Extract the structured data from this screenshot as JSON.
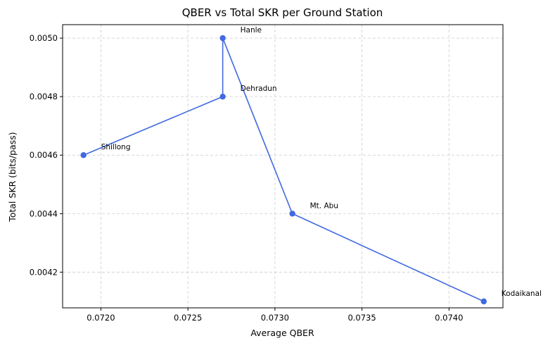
{
  "chart_data": {
    "type": "line",
    "title": "QBER vs Total SKR per Ground Station",
    "xlabel": "Average QBER",
    "ylabel": "Total SKR (bits/pass)",
    "xlim": [
      0.07178,
      0.07431
    ],
    "ylim": [
      0.004078,
      0.005046
    ],
    "grid": true,
    "grid_style": "dashed",
    "xticks": [
      "0.0720",
      "0.0725",
      "0.0730",
      "0.0735",
      "0.0740"
    ],
    "yticks": [
      "0.0042",
      "0.0044",
      "0.0046",
      "0.0048",
      "0.0050"
    ],
    "line_color": "#4169e1",
    "points": [
      {
        "station": "Shillong",
        "x": 0.0719,
        "y": 0.0046
      },
      {
        "station": "Dehradun",
        "x": 0.0727,
        "y": 0.0048
      },
      {
        "station": "Hanle",
        "x": 0.0727,
        "y": 0.005
      },
      {
        "station": "Mt. Abu",
        "x": 0.0731,
        "y": 0.0044
      },
      {
        "station": "Kodaikanal",
        "x": 0.0742,
        "y": 0.0041
      }
    ]
  }
}
